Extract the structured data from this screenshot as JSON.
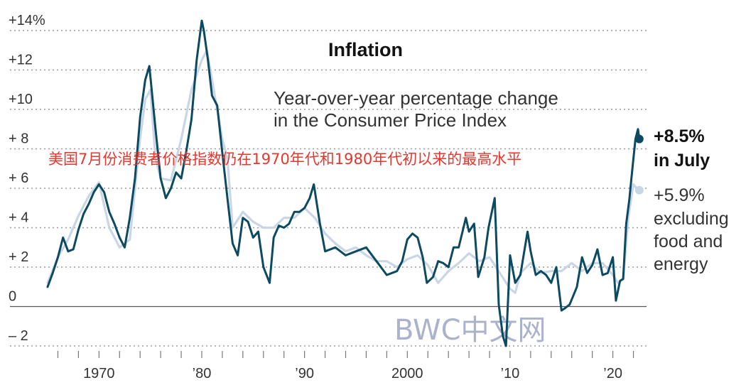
{
  "chart_data": {
    "type": "line",
    "title": "Inflation",
    "subtitle_lines": [
      "Year-over-year percentage change",
      "in the Consumer Price Index"
    ],
    "overlay_text": "美国7月份消费者价格指数仍在1970年代和1980年代初以来的最高水平",
    "watermark": "BWC中文网",
    "ylim": [
      -2,
      14
    ],
    "y_ticks": [
      {
        "value": 14,
        "label": "+14%"
      },
      {
        "value": 12,
        "label": "+12"
      },
      {
        "value": 10,
        "label": "+10"
      },
      {
        "value": 8,
        "label": "+ 8"
      },
      {
        "value": 6,
        "label": "+ 6"
      },
      {
        "value": 4,
        "label": "+ 4"
      },
      {
        "value": 2,
        "label": "+ 2"
      },
      {
        "value": 0,
        "label": "0"
      },
      {
        "value": -2,
        "label": "– 2"
      }
    ],
    "xlim": [
      1965,
      2023
    ],
    "x_ticks": [
      {
        "value": 1970,
        "label": "1970"
      },
      {
        "value": 1980,
        "label": "’80"
      },
      {
        "value": 1990,
        "label": "’90"
      },
      {
        "value": 2000,
        "label": "2000"
      },
      {
        "value": 2010,
        "label": "’10"
      },
      {
        "value": 2020,
        "label": "’20"
      }
    ],
    "series": [
      {
        "name": "Consumer Price Index",
        "color": "#0b4a60",
        "x": [
          1965.0,
          1965.5,
          1966.0,
          1966.5,
          1967.0,
          1967.5,
          1968.0,
          1968.5,
          1969.0,
          1969.5,
          1970.0,
          1970.5,
          1971.0,
          1971.5,
          1972.0,
          1972.5,
          1973.0,
          1973.5,
          1974.0,
          1974.5,
          1974.9,
          1975.5,
          1976.0,
          1976.5,
          1977.0,
          1977.5,
          1978.0,
          1978.5,
          1979.0,
          1979.5,
          1980.0,
          1980.2,
          1980.6,
          1981.0,
          1981.5,
          1982.0,
          1982.5,
          1983.0,
          1983.5,
          1984.0,
          1984.5,
          1985.0,
          1985.5,
          1986.0,
          1986.6,
          1987.0,
          1987.5,
          1988.0,
          1988.5,
          1989.0,
          1989.5,
          1990.0,
          1990.5,
          1990.9,
          1991.5,
          1992.0,
          1993.0,
          1994.0,
          1995.0,
          1996.0,
          1997.0,
          1998.0,
          1998.5,
          1999.0,
          1999.5,
          2000.0,
          2000.5,
          2001.0,
          2001.5,
          2001.9,
          2002.5,
          2003.0,
          2003.5,
          2004.0,
          2004.5,
          2005.0,
          2005.7,
          2006.0,
          2006.5,
          2006.9,
          2007.5,
          2007.9,
          2008.5,
          2008.9,
          2009.3,
          2009.6,
          2010.0,
          2010.5,
          2011.0,
          2011.7,
          2012.0,
          2012.5,
          2013.0,
          2013.5,
          2014.0,
          2014.5,
          2015.0,
          2015.3,
          2015.8,
          2016.5,
          2017.0,
          2017.5,
          2018.0,
          2018.5,
          2019.0,
          2019.5,
          2020.0,
          2020.3,
          2020.7,
          2021.0,
          2021.3,
          2021.6,
          2021.9,
          2022.2,
          2022.45,
          2022.57
        ],
        "values": [
          1.0,
          1.7,
          2.5,
          3.5,
          2.8,
          2.9,
          3.9,
          4.7,
          5.2,
          5.8,
          6.2,
          5.8,
          4.8,
          4.2,
          3.5,
          3.0,
          4.5,
          6.5,
          9.6,
          11.5,
          12.2,
          9.0,
          6.5,
          5.5,
          6.0,
          6.8,
          6.5,
          7.9,
          9.5,
          12.5,
          14.5,
          14.0,
          12.5,
          10.7,
          10.2,
          7.8,
          5.5,
          3.2,
          2.6,
          4.5,
          4.3,
          3.5,
          3.8,
          2.0,
          1.2,
          3.5,
          4.1,
          4.0,
          4.2,
          4.8,
          4.8,
          5.0,
          5.5,
          6.2,
          4.2,
          2.8,
          3.0,
          2.6,
          2.8,
          3.0,
          2.3,
          1.6,
          1.7,
          1.8,
          2.3,
          3.4,
          3.7,
          3.5,
          2.5,
          1.2,
          1.5,
          2.3,
          2.2,
          2.0,
          3.0,
          3.0,
          4.5,
          3.8,
          4.2,
          1.5,
          2.5,
          4.0,
          5.5,
          0.1,
          -1.5,
          -2.0,
          2.6,
          1.2,
          1.6,
          3.8,
          2.8,
          1.6,
          1.8,
          1.6,
          1.2,
          2.0,
          -0.2,
          -0.1,
          0.1,
          1.0,
          2.5,
          1.7,
          2.1,
          2.9,
          1.6,
          1.7,
          2.5,
          0.3,
          1.3,
          1.4,
          4.2,
          5.4,
          7.0,
          8.5,
          9.0,
          8.5
        ]
      },
      {
        "name": "Excluding food and energy",
        "color": "#c9d6e6",
        "x": [
          1965.0,
          1966.0,
          1967.0,
          1968.0,
          1969.0,
          1970.0,
          1971.0,
          1972.0,
          1973.0,
          1974.0,
          1974.5,
          1975.0,
          1975.5,
          1976.0,
          1977.0,
          1978.0,
          1979.0,
          1980.0,
          1980.5,
          1981.0,
          1981.5,
          1982.0,
          1982.5,
          1983.0,
          1984.0,
          1985.0,
          1986.0,
          1987.0,
          1988.0,
          1989.0,
          1990.0,
          1991.0,
          1992.0,
          1993.0,
          1994.0,
          1995.0,
          1996.0,
          1997.0,
          1998.0,
          1999.0,
          2000.0,
          2001.0,
          2002.0,
          2003.0,
          2004.0,
          2005.0,
          2006.0,
          2007.0,
          2008.0,
          2009.0,
          2010.0,
          2010.5,
          2011.0,
          2012.0,
          2013.0,
          2014.0,
          2015.0,
          2016.0,
          2017.0,
          2018.0,
          2019.0,
          2020.0,
          2020.5,
          2021.0,
          2021.5,
          2022.0,
          2022.3,
          2022.57
        ],
        "values": [
          1.2,
          2.5,
          3.4,
          4.6,
          5.6,
          6.3,
          4.0,
          3.0,
          3.4,
          8.5,
          10.5,
          11.0,
          7.5,
          6.5,
          6.4,
          8.5,
          11.0,
          12.5,
          13.0,
          11.5,
          10.0,
          8.5,
          7.5,
          4.0,
          4.8,
          4.3,
          4.0,
          4.0,
          4.5,
          4.5,
          5.0,
          4.5,
          3.7,
          3.2,
          2.8,
          3.0,
          2.6,
          2.3,
          2.3,
          2.0,
          2.4,
          2.6,
          2.1,
          1.2,
          1.8,
          2.2,
          2.7,
          2.3,
          2.5,
          1.7,
          0.9,
          0.7,
          1.7,
          2.2,
          1.7,
          1.8,
          1.8,
          2.2,
          1.8,
          2.2,
          2.2,
          1.6,
          1.2,
          1.4,
          4.5,
          6.2,
          6.0,
          5.9
        ]
      }
    ],
    "annotations": [
      {
        "series": "Consumer Price Index",
        "value_label": "+8.5%",
        "period_label": "in July"
      },
      {
        "series": "Excluding food and energy",
        "value_label": "+5.9%",
        "lines": [
          "excluding",
          "food and",
          "energy"
        ]
      }
    ]
  }
}
